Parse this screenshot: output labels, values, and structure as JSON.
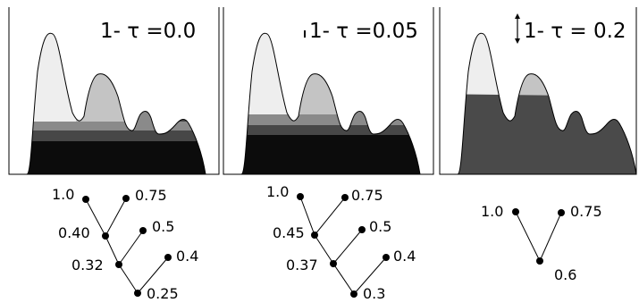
{
  "panels": [
    {
      "title": "1- τ =0.0",
      "tree": {
        "labels": [
          "1.0",
          "0.75",
          "0.40",
          "0.5",
          "0.32",
          "0.4",
          "0.25"
        ]
      }
    },
    {
      "title": "1- τ =0.05",
      "tree": {
        "labels": [
          "1.0",
          "0.75",
          "0.45",
          "0.5",
          "0.37",
          "0.4",
          "0.3"
        ]
      }
    },
    {
      "title": "1- τ = 0.2",
      "tree": {
        "labels": [
          "1.0",
          "0.75",
          "0.6"
        ]
      }
    }
  ],
  "colors": {
    "lightest": "#eeeeee",
    "light": "#c4c4c4",
    "mid": "#8a8a8a",
    "dark": "#474747",
    "darkest": "#0c0c0c",
    "panel3_fill": "#4a4a4a"
  }
}
